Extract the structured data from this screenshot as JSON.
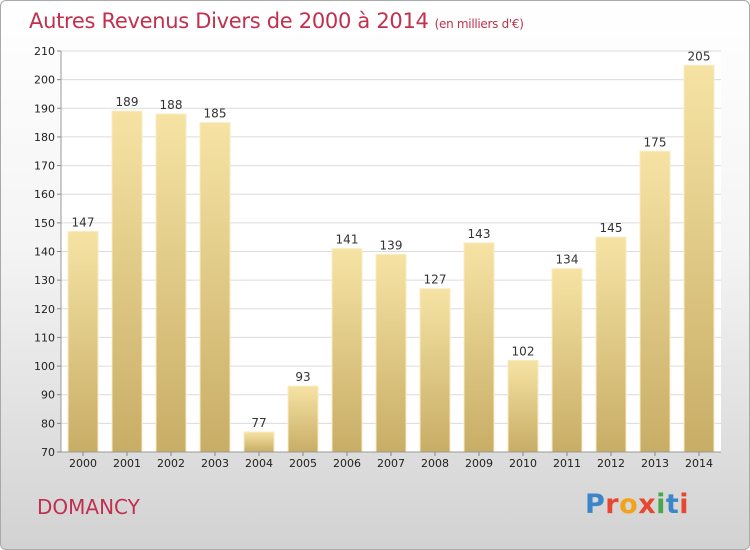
{
  "header": {
    "title": "Autres Revenus Divers de 2000 à 2014",
    "subtitle": "(en milliers d'€)"
  },
  "footer": {
    "commune": "DOMANCY",
    "brand_letters": [
      "P",
      "r",
      "o",
      "x",
      "i",
      "t",
      "i"
    ],
    "brand_colors": [
      "#3a86c8",
      "#e7472f",
      "#f2a21b",
      "#e7472f",
      "#46a84a",
      "#3a86c8",
      "#e7472f"
    ]
  },
  "colors": {
    "bar_top": "#f6e3a4",
    "bar_bottom": "#c8ad66",
    "bar_edge": "#f8ecc2",
    "grid": "#dcdcdc",
    "plot_bg": "#ffffff",
    "title": "#c0304f"
  },
  "chart_data": {
    "type": "bar",
    "title": "Autres Revenus Divers de 2000 à 2014",
    "subtitle": "(en milliers d'€)",
    "xlabel": "",
    "ylabel": "",
    "categories": [
      "2000",
      "2001",
      "2002",
      "2003",
      "2004",
      "2005",
      "2006",
      "2007",
      "2008",
      "2009",
      "2010",
      "2011",
      "2012",
      "2013",
      "2014"
    ],
    "values": [
      147,
      189,
      188,
      185,
      77,
      93,
      141,
      139,
      127,
      143,
      102,
      134,
      145,
      175,
      205
    ],
    "ylim": [
      70,
      210
    ],
    "yticks": [
      70,
      80,
      90,
      100,
      110,
      120,
      130,
      140,
      150,
      160,
      170,
      180,
      190,
      200,
      210
    ],
    "grid": true,
    "legend": "none"
  }
}
